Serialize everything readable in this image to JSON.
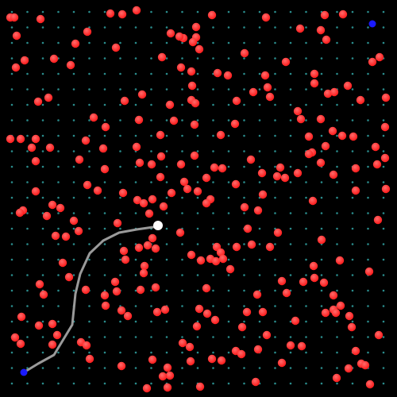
{
  "scene": {
    "background": "#000000",
    "grid_color": "#2a8c8c",
    "grid": {
      "columns": 25,
      "rows": 25
    }
  },
  "entities": {
    "obstacle": {
      "name": "red-ball",
      "color": "#ff1a1a",
      "highlight": "#ff6b6b"
    },
    "agent": {
      "name": "white-ball",
      "color": "#ffffff"
    },
    "goal": {
      "name": "blue-ball",
      "color": "#1a1aff"
    },
    "trail": {
      "name": "path-trail",
      "color": "#9a9a9a"
    }
  }
}
